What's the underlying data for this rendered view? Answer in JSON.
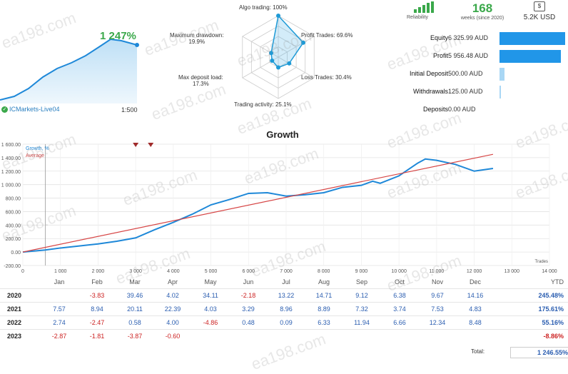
{
  "mini": {
    "percent": "1 247%",
    "account": "ICMarkets-Live04",
    "leverage": "1:500"
  },
  "radar": {
    "labels": {
      "algo": "Algo trading: 100%",
      "profit_trades": "Profit Trades: 69.6%",
      "loss_trades": "Loss Trades: 30.4%",
      "activity": "Trading activity: 25.1%",
      "deposit_load": "Max deposit load:\n17.3%",
      "drawdown": "Maximum drawdown:\n19.9%"
    },
    "values": {
      "algo": 100,
      "profit_trades": 69.6,
      "loss_trades": 30.4,
      "activity": 25.1,
      "deposit_load": 17.3,
      "drawdown": 19.9
    }
  },
  "reliability": {
    "label": "Reliability"
  },
  "weeks": {
    "value": "168",
    "label": "weeks (since 2020)"
  },
  "money": {
    "value": "5.2K USD",
    "icon": "money-bag-icon"
  },
  "stats": [
    {
      "label": "Equity",
      "value": "6 325.99 AUD",
      "fraction": 1.0
    },
    {
      "label": "Profit",
      "value": "5 956.48 AUD",
      "fraction": 0.94
    },
    {
      "label": "Initial Deposit",
      "value": "500.00 AUD",
      "fraction": 0.079
    },
    {
      "label": "Withdrawals",
      "value": "125.00 AUD",
      "fraction": 0.02
    },
    {
      "label": "Deposits",
      "value": "0.00 AUD",
      "fraction": 0
    }
  ],
  "chart_data": {
    "type": "line",
    "title": "Growth",
    "legend": [
      "Growth, %",
      "Average"
    ],
    "xlabel": "Trades",
    "xlim": [
      0,
      14000
    ],
    "ylim": [
      -200,
      1600
    ],
    "xticks": [
      "0",
      "1 000",
      "2 000",
      "3 000",
      "4 000",
      "5 000",
      "6 000",
      "7 000",
      "8 000",
      "9 000",
      "10 000",
      "11 000",
      "12 000",
      "13 000",
      "14 000"
    ],
    "yticks": [
      "-200.00",
      "0.00",
      "200.00",
      "400.00",
      "600.00",
      "800.00",
      "1 000.00",
      "1 200.00",
      "1 400.00",
      "1 600.00"
    ],
    "series": [
      {
        "name": "Growth, %",
        "color": "#1e88d8",
        "x": [
          0,
          600,
          1000,
          1500,
          2000,
          2500,
          3000,
          3500,
          4000,
          4500,
          5000,
          5500,
          6000,
          6500,
          7000,
          7500,
          8000,
          8500,
          9000,
          9300,
          9500,
          10000,
          10500,
          10700,
          11000,
          11500,
          12000,
          12500
        ],
        "y": [
          0,
          30,
          60,
          90,
          120,
          160,
          210,
          330,
          440,
          560,
          700,
          780,
          870,
          880,
          830,
          850,
          880,
          960,
          990,
          1050,
          1020,
          1130,
          1320,
          1380,
          1360,
          1300,
          1200,
          1240
        ]
      },
      {
        "name": "Average",
        "color": "#d64545",
        "x": [
          0,
          12500
        ],
        "y": [
          0,
          1450
        ]
      }
    ],
    "markers_x": [
      3000,
      3400
    ]
  },
  "table": {
    "months": [
      "Jan",
      "Feb",
      "Mar",
      "Apr",
      "May",
      "Jun",
      "Jul",
      "Aug",
      "Sep",
      "Oct",
      "Nov",
      "Dec"
    ],
    "ytd_label": "YTD",
    "rows": [
      {
        "year": "2020",
        "values": [
          "",
          "-3.83",
          "39.46",
          "4.02",
          "34.11",
          "-2.18",
          "13.22",
          "14.71",
          "9.12",
          "6.38",
          "9.67",
          "14.16"
        ],
        "ytd": "245.48%"
      },
      {
        "year": "2021",
        "values": [
          "7.57",
          "8.94",
          "20.11",
          "22.39",
          "4.03",
          "3.29",
          "8.96",
          "8.89",
          "7.32",
          "3.74",
          "7.53",
          "4.83"
        ],
        "ytd": "175.61%"
      },
      {
        "year": "2022",
        "values": [
          "2.74",
          "-2.47",
          "0.58",
          "4.00",
          "-4.86",
          "0.48",
          "0.09",
          "6.33",
          "11.94",
          "6.66",
          "12.34",
          "8.48"
        ],
        "ytd": "55.16%"
      },
      {
        "year": "2023",
        "values": [
          "-2.87",
          "-1.81",
          "-3.87",
          "-0.60",
          "",
          "",
          "",
          "",
          "",
          "",
          "",
          ""
        ],
        "ytd": "-8.86%"
      }
    ],
    "total_label": "Total:",
    "total_value": "1 246.55%"
  },
  "watermark": "ea198.com"
}
